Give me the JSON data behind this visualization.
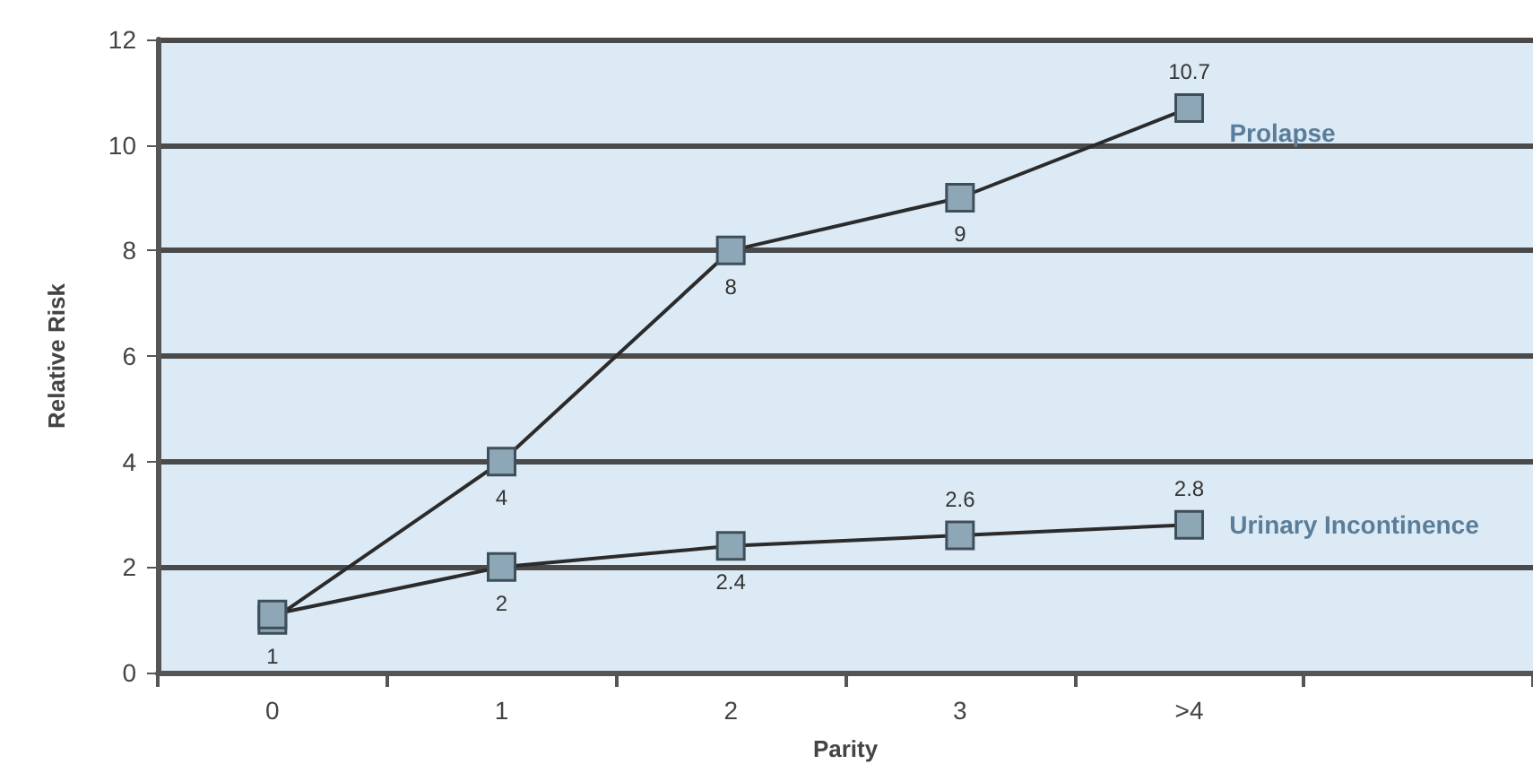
{
  "chart_data": {
    "type": "line",
    "xlabel": "Parity",
    "ylabel": "Relative Risk",
    "categories": [
      "0",
      "1",
      "2",
      "3",
      ">4",
      null
    ],
    "series": [
      {
        "name": "Prolapse",
        "color": "#2b2b2b",
        "values": [
          1,
          4,
          8,
          9,
          10.7,
          null
        ],
        "value_labels": [
          "1",
          "4",
          "8",
          "9",
          "10.7",
          null
        ]
      },
      {
        "name": "Urinary Incontinence",
        "color": "#2b2b2b",
        "values": [
          1.1,
          2,
          2.4,
          2.6,
          2.8,
          null
        ],
        "value_labels": [
          null,
          "2",
          "2.4",
          "2.6",
          "2.8",
          null
        ]
      }
    ],
    "ylim": [
      0,
      12
    ],
    "yticks": [
      0,
      2,
      4,
      6,
      8,
      10,
      12
    ],
    "grid": "y",
    "legend": false,
    "marker": "square",
    "line_style": "solid"
  }
}
